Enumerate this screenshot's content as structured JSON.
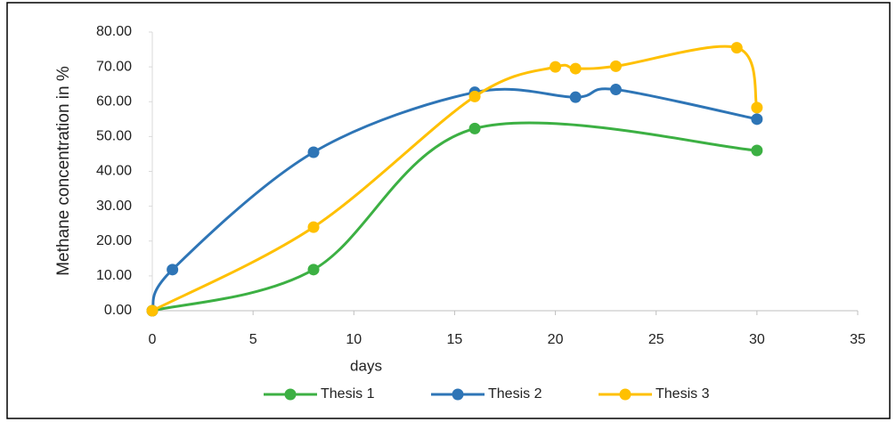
{
  "chart_data": {
    "type": "line",
    "xlabel": "days",
    "ylabel": "Methane concentration in %",
    "series": [
      {
        "name": "Thesis 1",
        "color": "#3cb043",
        "x": [
          0,
          8,
          16,
          30
        ],
        "values": [
          0,
          11.8,
          52.3,
          46
        ]
      },
      {
        "name": "Thesis 2",
        "color": "#2e75b6",
        "x": [
          0,
          1,
          8,
          16,
          21,
          23,
          30
        ],
        "values": [
          0,
          11.8,
          45.5,
          62.7,
          61.3,
          63.5,
          55
        ]
      },
      {
        "name": "Thesis 3",
        "color": "#ffc000",
        "x": [
          0,
          8,
          16,
          20,
          21,
          23,
          29,
          30
        ],
        "values": [
          0,
          24,
          61.5,
          70,
          69.5,
          70.2,
          75.5,
          58.3
        ]
      }
    ],
    "xlim": [
      0,
      35
    ],
    "xticks": [
      0,
      5,
      10,
      15,
      20,
      25,
      30,
      35
    ],
    "ylim": [
      0,
      80
    ],
    "yticks": [
      {
        "value": 0,
        "label": "0.00"
      },
      {
        "value": 10,
        "label": "10.00"
      },
      {
        "value": 20,
        "label": "20.00"
      },
      {
        "value": 30,
        "label": "30.00"
      },
      {
        "value": 40,
        "label": "40.00"
      },
      {
        "value": 50,
        "label": "50.00"
      },
      {
        "value": 60,
        "label": "60.00"
      },
      {
        "value": 70,
        "label": "70.00"
      },
      {
        "value": 80,
        "label": "80.00"
      }
    ],
    "smooth": true,
    "markers": true,
    "legend": "bottom"
  }
}
